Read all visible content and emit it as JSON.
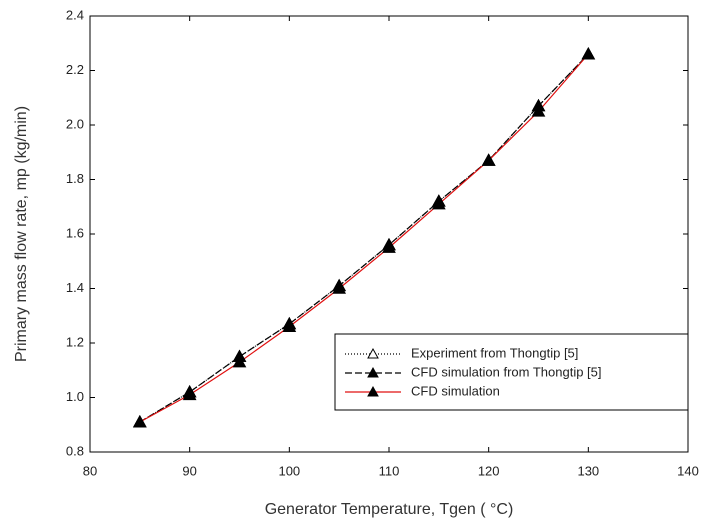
{
  "chart_data": {
    "type": "line",
    "x_label": "Generator Temperature, Tgen ( °C)",
    "y_label": "Primary mass flow rate, mp (kg/min)",
    "x": [
      85,
      90,
      95,
      100,
      105,
      110,
      115,
      120,
      125,
      130
    ],
    "series": [
      {
        "name": "Experiment from Thongtip [5]",
        "color": "#000000",
        "line_style": "dotted",
        "marker": "open-triangle",
        "values": [
          0.91,
          1.02,
          1.15,
          1.27,
          1.41,
          1.56,
          1.72,
          1.87,
          2.07,
          2.26
        ]
      },
      {
        "name": "CFD simulation from Thongtip [5]",
        "color": "#000000",
        "line_style": "dashed",
        "marker": "filled-triangle",
        "values": [
          0.91,
          1.02,
          1.15,
          1.27,
          1.41,
          1.56,
          1.72,
          1.87,
          2.07,
          2.26
        ]
      },
      {
        "name": "CFD simulation",
        "color": "#e01010",
        "line_style": "solid",
        "marker": "filled-triangle",
        "values": [
          0.91,
          1.01,
          1.13,
          1.26,
          1.4,
          1.55,
          1.71,
          1.87,
          2.05,
          2.26
        ]
      }
    ],
    "xlim": [
      80,
      140
    ],
    "xticks": [
      80,
      90,
      100,
      110,
      120,
      130,
      140
    ],
    "ylim": [
      0.8,
      2.4
    ],
    "yticks": [
      0.8,
      {
        "value": 1,
        "label": "1.0"
      },
      1.2,
      1.4,
      1.6,
      1.8,
      {
        "value": 2,
        "label": "2.0"
      },
      2.2,
      2.4
    ],
    "grid": false,
    "legend": "lower right"
  }
}
